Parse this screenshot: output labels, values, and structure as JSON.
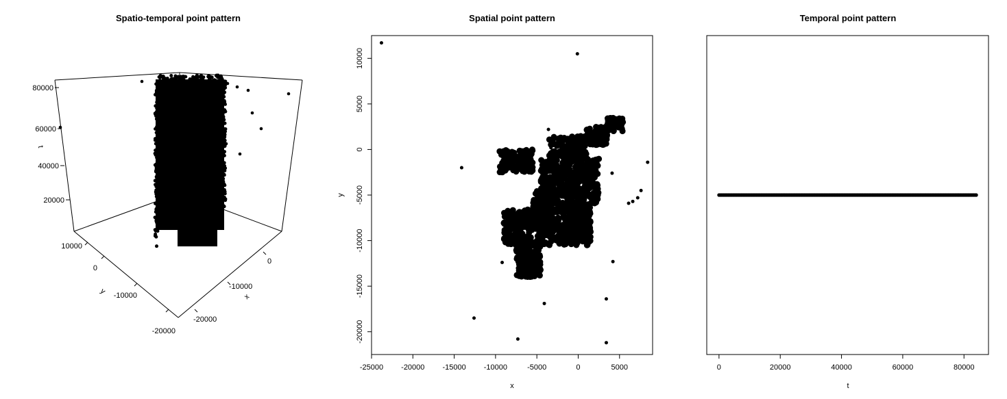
{
  "chart_data": [
    {
      "type": "scatter",
      "dimension": "3d",
      "title": "Spatio-temporal point pattern",
      "xlabel": "x",
      "ylabel": "y",
      "zlabel": "t",
      "x_ticks": [
        "0",
        "-10000",
        "-20000"
      ],
      "y_ticks": [
        "10000",
        "0",
        "-10000",
        "-20000"
      ],
      "z_ticks": [
        "80000",
        "60000",
        "40000",
        "20000"
      ],
      "outliers_t": [
        82000,
        84000,
        78000,
        68000,
        62000,
        51000,
        60000
      ],
      "note_points": "dense column of points spanning t from 0 to about 84000"
    },
    {
      "type": "scatter",
      "title": "Spatial point pattern",
      "xlabel": "x",
      "ylabel": "y",
      "xlim": [
        -25000,
        9000
      ],
      "ylim": [
        -22500,
        12500
      ],
      "x_ticks": [
        "-25000",
        "-20000",
        "-15000",
        "-10000",
        "-5000",
        "0",
        "5000"
      ],
      "y_ticks": [
        "10000",
        "5000",
        "0",
        "-5000",
        "-10000",
        "-15000",
        "-20000"
      ],
      "x_tick_values": [
        -25000,
        -20000,
        -15000,
        -10000,
        -5000,
        0,
        5000
      ],
      "y_tick_values": [
        10000,
        5000,
        0,
        -5000,
        -10000,
        -15000,
        -20000
      ],
      "isolated_points": [
        [
          -23800,
          11700
        ],
        [
          -100,
          10500
        ],
        [
          -14100,
          -2000
        ],
        [
          8400,
          -1400
        ],
        [
          -12600,
          -18500
        ],
        [
          -7300,
          -20800
        ],
        [
          -4100,
          -16900
        ],
        [
          3400,
          -16400
        ],
        [
          4200,
          -12300
        ],
        [
          3400,
          -21200
        ],
        [
          -9200,
          -12400
        ],
        [
          6100,
          -5900
        ],
        [
          6600,
          -5700
        ],
        [
          7200,
          -5300
        ],
        [
          7600,
          -4500
        ],
        [
          -3600,
          2200
        ],
        [
          -3300,
          200
        ],
        [
          4100,
          -2600
        ]
      ],
      "cluster_regions": [
        {
          "x": [
            -9500,
            -5500
          ],
          "y": [
            -2500,
            0
          ]
        },
        {
          "x": [
            -3500,
            1000
          ],
          "y": [
            -1000,
            1500
          ]
        },
        {
          "x": [
            1000,
            3500
          ],
          "y": [
            500,
            2500
          ]
        },
        {
          "x": [
            3500,
            5500
          ],
          "y": [
            2000,
            3500
          ]
        },
        {
          "x": [
            -4500,
            2500
          ],
          "y": [
            -6000,
            -1000
          ]
        },
        {
          "x": [
            -9000,
            -4000
          ],
          "y": [
            -10500,
            -6500
          ]
        },
        {
          "x": [
            -4000,
            1500
          ],
          "y": [
            -10500,
            -6000
          ]
        },
        {
          "x": [
            -7500,
            -4500
          ],
          "y": [
            -14000,
            -10500
          ]
        },
        {
          "x": [
            -5500,
            -3000
          ],
          "y": [
            -7000,
            -4500
          ]
        },
        {
          "x": [
            0,
            1500
          ],
          "y": [
            -9000,
            -6000
          ]
        }
      ]
    },
    {
      "type": "scatter",
      "title": "Temporal point pattern",
      "xlabel": "t",
      "xlim": [
        -4000,
        88000
      ],
      "x_ticks": [
        "0",
        "20000",
        "40000",
        "60000",
        "80000"
      ],
      "x_tick_values": [
        0,
        20000,
        40000,
        60000,
        80000
      ],
      "t_range": [
        0,
        84000
      ],
      "y_constant": 0
    }
  ]
}
